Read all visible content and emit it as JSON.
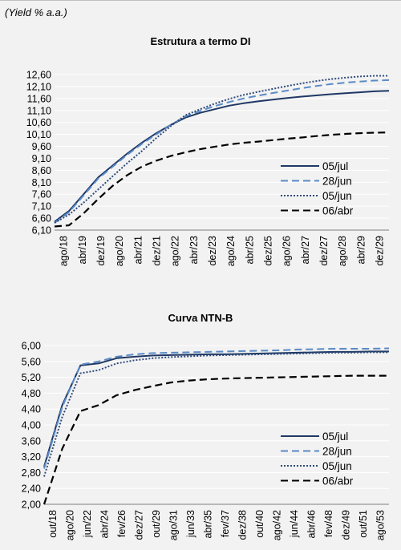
{
  "caption": {
    "open": "(",
    "italic": "Yield % a.a.",
    "close": ")"
  },
  "colors": {
    "s1": "#1f3864",
    "s2": "#5b8ac6",
    "s3": "#2e4a7a",
    "s4": "#000000",
    "grid": "#ffffff",
    "axis": "#7f7f7f"
  },
  "chart_data": [
    {
      "type": "line",
      "title": "Estrutura a termo DI",
      "xlabel": "",
      "ylabel": "",
      "ylim": [
        6.1,
        12.6
      ],
      "yticks": [
        "12,60",
        "12,10",
        "11,60",
        "11,10",
        "10,60",
        "10,10",
        "9,60",
        "9,10",
        "8,60",
        "8,10",
        "7,60",
        "7,10",
        "6,60",
        "6,10"
      ],
      "x_tick_labels": [
        "ago/18",
        "abr/19",
        "dez/19",
        "ago/20",
        "abr/21",
        "dez/21",
        "ago/22",
        "abr/23",
        "dez/23",
        "ago/24",
        "abr/25",
        "dez/25",
        "ago/26",
        "abr/27",
        "dez/27",
        "ago/28",
        "abr/29",
        "dez/29"
      ],
      "legend_position": "right-bottom",
      "series": [
        {
          "name": "05/jul",
          "style": "solid",
          "color": "#1f3864",
          "values": [
            6.45,
            6.9,
            7.6,
            8.3,
            8.8,
            9.3,
            9.75,
            10.15,
            10.5,
            10.8,
            11.0,
            11.15,
            11.3,
            11.4,
            11.48,
            11.55,
            11.62,
            11.68,
            11.73,
            11.78,
            11.82,
            11.86,
            11.9,
            11.92
          ]
        },
        {
          "name": "28/jun",
          "style": "dashed",
          "color": "#5b8ac6",
          "values": [
            6.4,
            6.85,
            7.55,
            8.25,
            8.75,
            9.25,
            9.7,
            10.1,
            10.5,
            10.85,
            11.08,
            11.28,
            11.45,
            11.6,
            11.72,
            11.83,
            11.93,
            12.03,
            12.12,
            12.2,
            12.26,
            12.31,
            12.35,
            12.37
          ]
        },
        {
          "name": "05/jun",
          "style": "dotted",
          "color": "#2e4a7a",
          "values": [
            6.4,
            6.75,
            7.25,
            7.8,
            8.35,
            8.9,
            9.4,
            9.95,
            10.45,
            10.9,
            11.15,
            11.38,
            11.58,
            11.75,
            11.88,
            12.0,
            12.12,
            12.23,
            12.33,
            12.41,
            12.47,
            12.52,
            12.55,
            12.55
          ]
        },
        {
          "name": "06/abr",
          "style": "dashed",
          "color": "#000000",
          "values": [
            6.25,
            6.3,
            6.8,
            7.4,
            7.95,
            8.4,
            8.75,
            9.0,
            9.2,
            9.35,
            9.48,
            9.58,
            9.68,
            9.75,
            9.8,
            9.86,
            9.92,
            9.97,
            10.03,
            10.08,
            10.12,
            10.15,
            10.17,
            10.18
          ]
        }
      ]
    },
    {
      "type": "line",
      "title": "Curva NTN-B",
      "xlabel": "",
      "ylabel": "",
      "ylim": [
        2.0,
        6.0
      ],
      "yticks": [
        "6,00",
        "5,60",
        "5,20",
        "4,80",
        "4,40",
        "4,00",
        "3,60",
        "3,20",
        "2,80",
        "2,40",
        "2,00"
      ],
      "x_tick_labels": [
        "out/18",
        "ago/20",
        "jun/22",
        "abr/24",
        "fev/26",
        "dez/27",
        "out/29",
        "ago/31",
        "jun/33",
        "abr/35",
        "fev/37",
        "dez/38",
        "out/40",
        "ago/42",
        "jun/44",
        "abr/46",
        "fev/48",
        "dez/49",
        "out/51",
        "ago/53"
      ],
      "legend_position": "right-bottom",
      "series": [
        {
          "name": "05/jul",
          "style": "solid",
          "color": "#1f3864",
          "values": [
            2.95,
            4.5,
            5.5,
            5.55,
            5.68,
            5.72,
            5.75,
            5.76,
            5.77,
            5.78,
            5.78,
            5.79,
            5.8,
            5.81,
            5.82,
            5.83,
            5.84,
            5.84,
            5.85,
            5.85
          ]
        },
        {
          "name": "28/jun",
          "style": "dashed",
          "color": "#5b8ac6",
          "values": [
            2.9,
            4.45,
            5.52,
            5.6,
            5.72,
            5.78,
            5.81,
            5.82,
            5.83,
            5.84,
            5.85,
            5.86,
            5.87,
            5.88,
            5.9,
            5.91,
            5.92,
            5.92,
            5.92,
            5.93
          ]
        },
        {
          "name": "05/jun",
          "style": "dotted",
          "color": "#2e4a7a",
          "values": [
            2.7,
            4.2,
            5.3,
            5.38,
            5.55,
            5.63,
            5.68,
            5.71,
            5.73,
            5.75,
            5.76,
            5.77,
            5.78,
            5.79,
            5.8,
            5.81,
            5.82,
            5.82,
            5.83,
            5.83
          ]
        },
        {
          "name": "06/abr",
          "style": "dashed",
          "color": "#000000",
          "values": [
            2.0,
            3.4,
            4.35,
            4.5,
            4.75,
            4.88,
            4.98,
            5.07,
            5.12,
            5.15,
            5.17,
            5.18,
            5.19,
            5.2,
            5.21,
            5.22,
            5.23,
            5.24,
            5.24,
            5.24
          ]
        }
      ]
    }
  ]
}
